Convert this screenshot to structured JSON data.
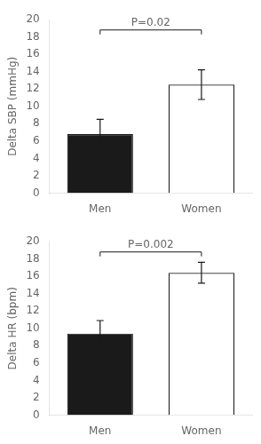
{
  "chart_data": [
    {
      "type": "bar",
      "categories": [
        "Men",
        "Women"
      ],
      "values": [
        6.8,
        12.5
      ],
      "errors": [
        1.7,
        1.7
      ],
      "colors": [
        "#1a1a1a",
        "#ffffff"
      ],
      "ylabel": "Delta SBP (mmHg)",
      "ylim": [
        0,
        20
      ],
      "yticks": [
        0,
        2,
        4,
        6,
        8,
        10,
        12,
        14,
        16,
        18,
        20
      ],
      "grid": false,
      "annotations": [
        {
          "text": "P=0.02",
          "from": "Men",
          "to": "Women",
          "y": 18.8
        }
      ]
    },
    {
      "type": "bar",
      "categories": [
        "Men",
        "Women"
      ],
      "values": [
        9.4,
        16.4
      ],
      "errors": [
        1.5,
        1.2
      ],
      "colors": [
        "#1a1a1a",
        "#ffffff"
      ],
      "ylabel": "Delta HR (bpm)",
      "ylim": [
        0,
        20
      ],
      "yticks": [
        0,
        2,
        4,
        6,
        8,
        10,
        12,
        14,
        16,
        18,
        20
      ],
      "grid": false,
      "annotations": [
        {
          "text": "P=0.002",
          "from": "Men",
          "to": "Women",
          "y": 18.8
        }
      ]
    }
  ]
}
